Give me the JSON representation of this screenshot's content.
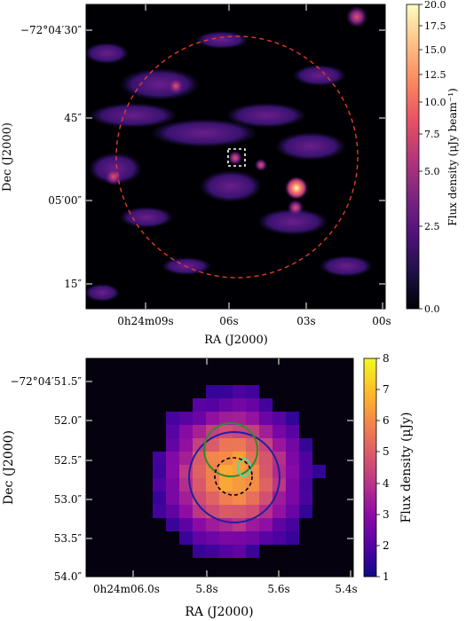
{
  "top_panel": {
    "xlabel": "RA (J2000)",
    "ylabel": "Dec (J2000)",
    "x_ticks": [
      "0h24m09s",
      "06s",
      "03s",
      "00s"
    ],
    "y_ticks": [
      "−72°04′30″",
      "45″",
      "05′00″",
      "15″"
    ],
    "colorbar": {
      "label": "Flux density (μJy beam⁻¹)",
      "ticks": [
        "20.0",
        "17.5",
        "15.0",
        "12.5",
        "10.0",
        "7.5",
        "5.0",
        "2.5",
        "0.0"
      ],
      "colors": [
        "#000004",
        "#1d1147",
        "#51127c",
        "#822681",
        "#b73779",
        "#e75263",
        "#fc8961",
        "#fec488",
        "#fcfdbf"
      ]
    },
    "overlays": [
      "dashed-red-circle",
      "dashed-white-box"
    ]
  },
  "bottom_panel": {
    "xlabel": "RA (J2000)",
    "ylabel": "Dec (J2000)",
    "x_ticks": [
      "0h24m06.0s",
      "5.8s",
      "5.6s",
      "5.4s"
    ],
    "y_ticks": [
      "−72°04′51.5″",
      "52.0″",
      "52.5″",
      "53.0″",
      "53.5″",
      "54.0″"
    ],
    "colorbar": {
      "label": "Flux density (μJy)",
      "ticks": [
        "8",
        "7",
        "6",
        "5",
        "4",
        "3",
        "2",
        "1"
      ],
      "colors": [
        "#0d0887",
        "#5302a3",
        "#8b0aa5",
        "#b83289",
        "#db5c68",
        "#f48849",
        "#febd2a",
        "#f0f921"
      ]
    },
    "overlays": [
      "blue-circle",
      "green-circle",
      "cyan-ellipse",
      "dashed-black-circle"
    ]
  }
}
